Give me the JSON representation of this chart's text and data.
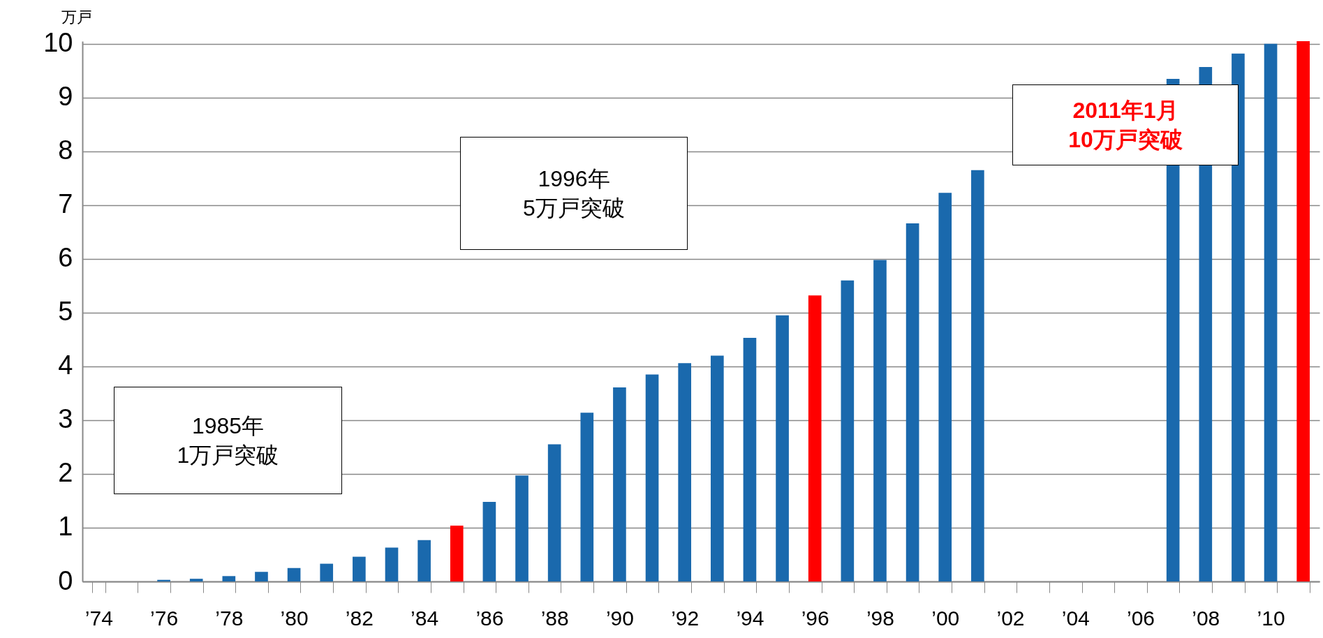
{
  "chart_data": {
    "type": "bar",
    "ylabel": "万戸",
    "categories": [
      "’74",
      null,
      "’76",
      null,
      "’78",
      null,
      "’80",
      null,
      "’82",
      null,
      "’84",
      null,
      "’86",
      null,
      "’88",
      null,
      "’90",
      null,
      "’92",
      null,
      "’94",
      null,
      "’96",
      null,
      "’98",
      null,
      "’00",
      null,
      "’02",
      null,
      "’04",
      null,
      "’06",
      null,
      "’08",
      null,
      "’10",
      null
    ],
    "values": [
      0,
      0,
      0.03,
      0.05,
      0.1,
      0.18,
      0.25,
      0.33,
      0.46,
      0.63,
      0.77,
      1.04,
      1.48,
      1.97,
      2.55,
      3.14,
      3.61,
      3.85,
      4.06,
      4.2,
      4.53,
      4.95,
      5.32,
      5.6,
      5.98,
      6.66,
      7.23,
      7.65,
      null,
      null,
      null,
      null,
      null,
      9.35,
      9.57,
      9.82,
      10.0,
      10.05
    ],
    "colors": [
      "#1a69ad",
      "#1a69ad",
      "#1a69ad",
      "#1a69ad",
      "#1a69ad",
      "#1a69ad",
      "#1a69ad",
      "#1a69ad",
      "#1a69ad",
      "#1a69ad",
      "#1a69ad",
      "#ff0000",
      "#1a69ad",
      "#1a69ad",
      "#1a69ad",
      "#1a69ad",
      "#1a69ad",
      "#1a69ad",
      "#1a69ad",
      "#1a69ad",
      "#1a69ad",
      "#1a69ad",
      "#ff0000",
      "#1a69ad",
      "#1a69ad",
      "#1a69ad",
      "#1a69ad",
      "#1a69ad",
      "#1a69ad",
      "#1a69ad",
      "#1a69ad",
      "#1a69ad",
      "#1a69ad",
      "#1a69ad",
      "#1a69ad",
      "#1a69ad",
      "#1a69ad",
      "#ff0000"
    ],
    "ylim": [
      0,
      10.05
    ],
    "yticks": [
      0,
      1,
      2,
      3,
      4,
      5,
      6,
      7,
      8,
      9,
      10
    ],
    "grid": "y",
    "annotations": [
      "1985年\n1万戸突破",
      "1996年\n5万戸突破",
      "2011年1月\n10万戸突破"
    ]
  }
}
